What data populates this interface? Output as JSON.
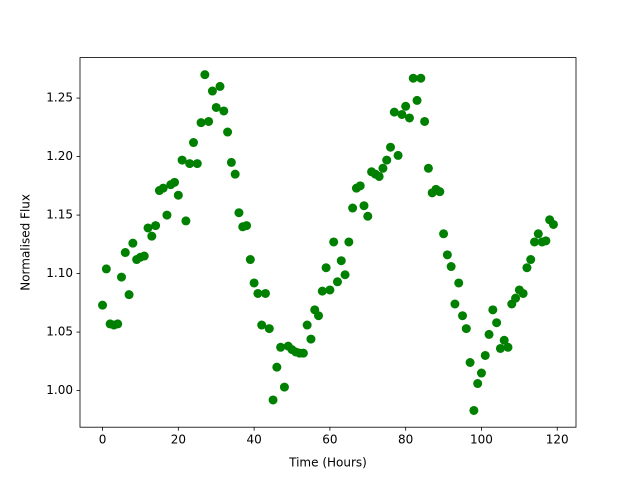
{
  "chart_data": {
    "type": "scatter",
    "xlabel": "Time (Hours)",
    "ylabel": "Normalised Flux",
    "x": [
      0,
      1,
      2,
      3,
      4,
      5,
      6,
      7,
      8,
      9,
      10,
      11,
      12,
      13,
      14,
      15,
      16,
      17,
      18,
      19,
      20,
      21,
      22,
      23,
      24,
      25,
      26,
      27,
      28,
      29,
      30,
      31,
      32,
      33,
      34,
      35,
      36,
      37,
      38,
      39,
      40,
      41,
      42,
      43,
      44,
      45,
      46,
      47,
      48,
      49,
      50,
      51,
      52,
      53,
      54,
      55,
      56,
      57,
      58,
      59,
      60,
      61,
      62,
      63,
      64,
      65,
      66,
      67,
      68,
      69,
      70,
      71,
      72,
      73,
      74,
      75,
      76,
      77,
      78,
      79,
      80,
      81,
      82,
      83,
      84,
      85,
      86,
      87,
      88,
      89,
      90,
      91,
      92,
      93,
      94,
      95,
      96,
      97,
      98,
      99,
      100,
      101,
      102,
      103,
      104,
      105,
      106,
      107,
      108,
      109,
      110,
      111,
      112,
      113,
      114,
      115,
      116,
      117,
      118,
      119
    ],
    "values": [
      1.073,
      1.104,
      1.057,
      1.056,
      1.057,
      1.097,
      1.118,
      1.082,
      1.126,
      1.112,
      1.114,
      1.115,
      1.139,
      1.132,
      1.141,
      1.171,
      1.173,
      1.15,
      1.176,
      1.178,
      1.167,
      1.197,
      1.145,
      1.194,
      1.212,
      1.194,
      1.229,
      1.27,
      1.23,
      1.256,
      1.242,
      1.26,
      1.239,
      1.221,
      1.195,
      1.185,
      1.152,
      1.14,
      1.141,
      1.112,
      1.092,
      1.083,
      1.056,
      1.083,
      1.053,
      0.992,
      1.02,
      1.037,
      1.003,
      1.038,
      1.035,
      1.033,
      1.032,
      1.032,
      1.056,
      1.044,
      1.069,
      1.064,
      1.085,
      1.105,
      1.086,
      1.127,
      1.093,
      1.111,
      1.099,
      1.127,
      1.156,
      1.173,
      1.175,
      1.158,
      1.149,
      1.187,
      1.185,
      1.183,
      1.19,
      1.197,
      1.208,
      1.238,
      1.201,
      1.236,
      1.243,
      1.233,
      1.267,
      1.248,
      1.267,
      1.23,
      1.19,
      1.169,
      1.172,
      1.17,
      1.134,
      1.116,
      1.106,
      1.074,
      1.092,
      1.064,
      1.053,
      1.024,
      0.983,
      1.006,
      1.015,
      1.03,
      1.048,
      1.069,
      1.058,
      1.036,
      1.043,
      1.037,
      1.074,
      1.079,
      1.086,
      1.083,
      1.105,
      1.112,
      1.127,
      1.134,
      1.127,
      1.128,
      1.146,
      1.142
    ],
    "color": "#008000",
    "xlim": [
      -5.95,
      124.95
    ],
    "xticks": [
      0,
      20,
      40,
      60,
      80,
      100,
      120
    ],
    "ylim": [
      0.9687,
      1.2846
    ],
    "yticks": [
      {
        "value": 1,
        "label": "1.00"
      },
      1.05,
      {
        "value": 1.1,
        "label": "1.10"
      },
      1.15,
      {
        "value": 1.2,
        "label": "1.20"
      },
      1.25
    ],
    "grid": false
  }
}
